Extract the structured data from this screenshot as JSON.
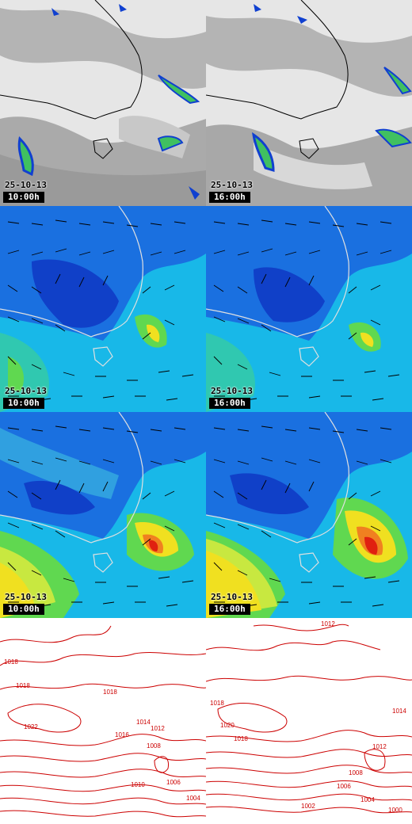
{
  "rows": [
    {
      "name": "satellite-cloud",
      "panels": [
        {
          "date": "25-10-13",
          "time": "10:00h"
        },
        {
          "date": "25-10-13",
          "time": "16:00h"
        }
      ]
    },
    {
      "name": "wind-field-a",
      "panels": [
        {
          "date": "25-10-13",
          "time": "10:00h"
        },
        {
          "date": "25-10-13",
          "time": "16:00h"
        }
      ]
    },
    {
      "name": "wind-field-b",
      "panels": [
        {
          "date": "25-10-13",
          "time": "10:00h"
        },
        {
          "date": "25-10-13",
          "time": "16:00h"
        }
      ]
    },
    {
      "name": "pressure-isobars",
      "panels": [
        {
          "isobar_labels": [
            "1018",
            "1018",
            "1018",
            "1022",
            "1014",
            "1012",
            "1016",
            "1008",
            "1010",
            "1006",
            "1004"
          ]
        },
        {
          "isobar_labels": [
            "1012",
            "1018",
            "1020",
            "1018",
            "1014",
            "1012",
            "1008",
            "1006",
            "1004",
            "1002",
            "1000"
          ]
        }
      ]
    }
  ],
  "colors": {
    "cloud_bg": "#e8e8e8",
    "cloud_grey": "#a0a0a0",
    "rain_green": "#40c060",
    "rain_blue": "#1040d0",
    "wind_low": "#1040d0",
    "wind_mid": "#18b8e8",
    "wind_green": "#40d060",
    "wind_yellow": "#f0f020",
    "wind_red": "#e02010",
    "isobar": "#cc0000",
    "coast": "#000000"
  }
}
